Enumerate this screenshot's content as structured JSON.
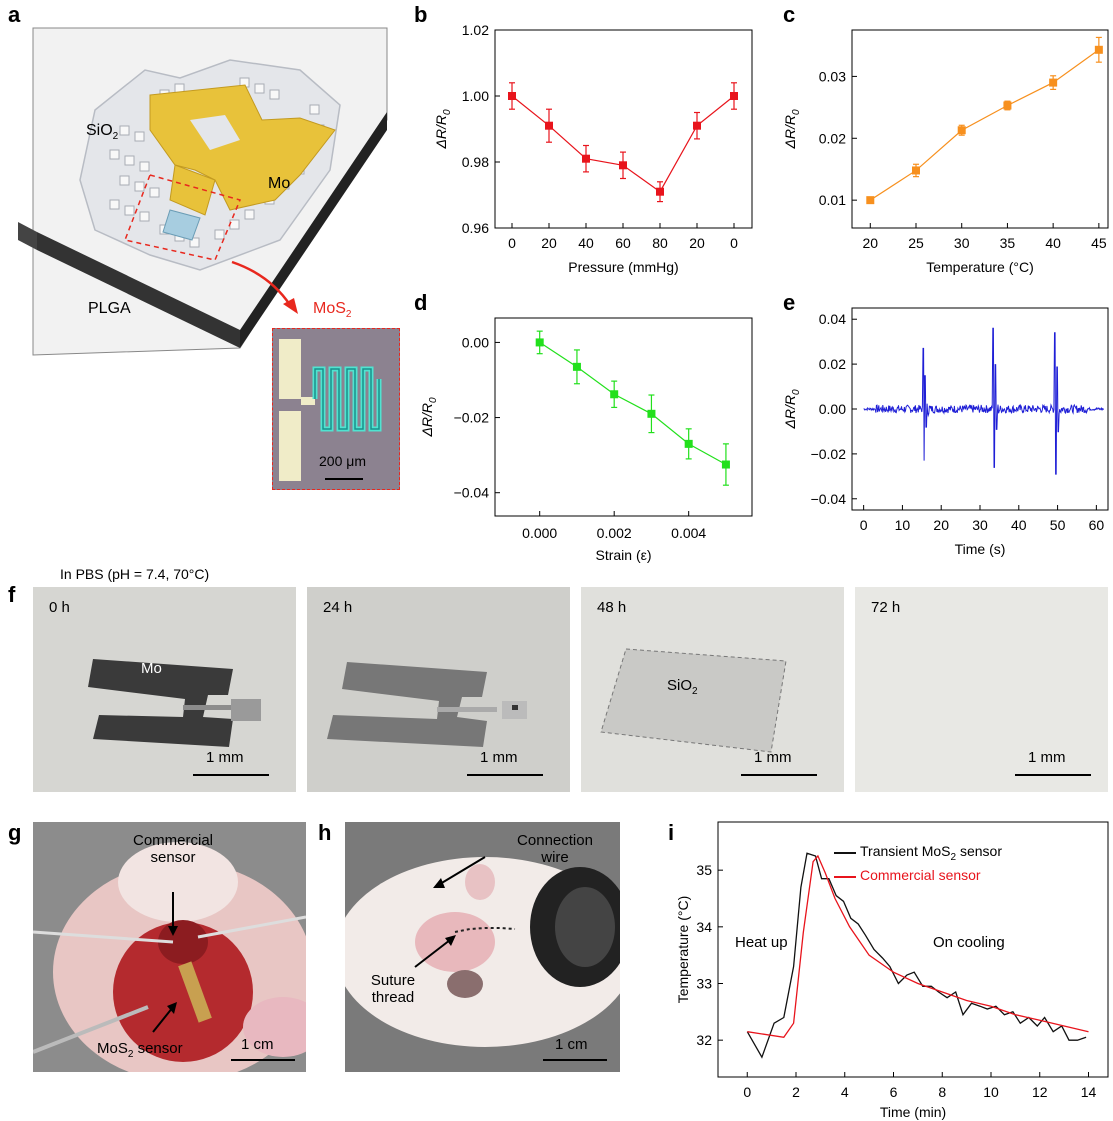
{
  "panel_labels": {
    "a": "a",
    "b": "b",
    "c": "c",
    "d": "d",
    "e": "e",
    "f": "f",
    "g": "g",
    "h": "h",
    "i": "i"
  },
  "schematic": {
    "sio2": "SiO",
    "sio2_sub": "2",
    "mo": "Mo",
    "plga": "PLGA",
    "mos2": "MoS",
    "mos2_sub": "2",
    "scale": "200 μm",
    "colors": {
      "mo": "#e8c23a",
      "arrow": "#e8281e",
      "dash": "#e8281e"
    }
  },
  "panel_f": {
    "caption": "In PBS (pH = 7.4, 70°C)",
    "frames": [
      {
        "time": "0 h",
        "label": "Mo",
        "scale": "1 mm"
      },
      {
        "time": "24 h",
        "label": "",
        "scale": "1 mm"
      },
      {
        "time": "48 h",
        "label": "SiO",
        "label_sub": "2",
        "scale": "1 mm"
      },
      {
        "time": "72 h",
        "label": "",
        "scale": "1 mm"
      }
    ]
  },
  "panel_g": {
    "commercial": "Commercial",
    "sensor": "sensor",
    "mos2_sensor": "MoS",
    "mos2_sub": "2",
    "mos2_tail": " sensor",
    "scale": "1 cm"
  },
  "panel_h": {
    "connection": "Connection",
    "wire": "wire",
    "suture": "Suture",
    "thread": "thread",
    "scale": "1 cm"
  },
  "chart_data": [
    {
      "id": "b",
      "type": "line",
      "color": "#e8141c",
      "xlabel": "Pressure (mmHg)",
      "categories": [
        "0",
        "20",
        "40",
        "60",
        "80",
        "20",
        "0"
      ],
      "values": [
        1.0,
        0.991,
        0.981,
        0.979,
        0.971,
        0.991,
        1.0
      ],
      "errors": [
        0.004,
        0.005,
        0.004,
        0.004,
        0.003,
        0.004,
        0.004
      ],
      "ylim": [
        0.96,
        1.02
      ],
      "yticks": [
        "0.96",
        "0.98",
        "1.00",
        "1.02"
      ],
      "marker": "square"
    },
    {
      "id": "c",
      "type": "line",
      "color": "#f7901e",
      "xlabel": "Temperature (°C)",
      "x": [
        20,
        25,
        30,
        35,
        40,
        45
      ],
      "values": [
        0.01,
        0.0148,
        0.0213,
        0.0253,
        0.029,
        0.0343
      ],
      "errors": [
        0.0004,
        0.001,
        0.0008,
        0.0007,
        0.0011,
        0.002
      ],
      "xlim": [
        18,
        46
      ],
      "xticks": [
        "20",
        "25",
        "30",
        "35",
        "40",
        "45"
      ],
      "ylim": [
        0.0055,
        0.0375
      ],
      "yticks": [
        "0.01",
        "0.02",
        "0.03"
      ],
      "marker": "square"
    },
    {
      "id": "d",
      "type": "line",
      "color": "#22e01c",
      "xlabel": "Strain (ε)",
      "x": [
        0,
        0.001,
        0.002,
        0.003,
        0.004,
        0.005
      ],
      "values": [
        0.0,
        -0.0065,
        -0.0138,
        -0.019,
        -0.027,
        -0.0325
      ],
      "errors": [
        0.003,
        0.0045,
        0.0035,
        0.005,
        0.004,
        0.0055
      ],
      "xlim": [
        -0.0012,
        0.0057
      ],
      "xticks": [
        "0.000",
        "0.002",
        "0.004"
      ],
      "ylim": [
        -0.0462,
        0.0065
      ],
      "yticks": [
        "0.00",
        "−0.02",
        "−0.04"
      ],
      "marker": "square"
    },
    {
      "id": "e",
      "type": "line",
      "color": "#1f1fd6",
      "xlabel": "Time (s)",
      "xlim": [
        -3,
        63
      ],
      "xticks": [
        "0",
        "10",
        "20",
        "30",
        "40",
        "50",
        "60"
      ],
      "ylim": [
        -0.045,
        0.045
      ],
      "yticks": [
        "0.04",
        "0.02",
        "0.00",
        "−0.02",
        "−0.04"
      ],
      "spikes": [
        {
          "t": 15.6,
          "up": 0.027,
          "down": -0.023
        },
        {
          "t": 33.6,
          "up": 0.036,
          "down": -0.026
        },
        {
          "t": 49.5,
          "up": 0.034,
          "down": -0.029
        }
      ]
    },
    {
      "id": "i",
      "type": "line",
      "xlabel": "Time (min)",
      "ylabel": "Temperature (°C)",
      "xlim": [
        -1.2,
        14.8
      ],
      "xticks": [
        "0",
        "2",
        "4",
        "6",
        "8",
        "10",
        "12",
        "14"
      ],
      "ylim": [
        31.35,
        35.85
      ],
      "yticks": [
        "32",
        "33",
        "34",
        "35"
      ],
      "annotations": [
        "Heat up",
        "On cooling"
      ],
      "series": [
        {
          "name": "Transient MoS2 sensor",
          "color": "#111111",
          "x": [
            0,
            0.6,
            1.1,
            1.5,
            1.9,
            2.2,
            2.45,
            2.8,
            3.05,
            3.35,
            3.65,
            3.95,
            4.25,
            4.55,
            4.85,
            5.2,
            5.55,
            5.85,
            6.2,
            6.55,
            6.85,
            7.2,
            7.55,
            7.85,
            8.2,
            8.55,
            8.85,
            9.2,
            9.55,
            9.85,
            10.2,
            10.55,
            10.9,
            11.2,
            11.55,
            11.9,
            12.2,
            12.55,
            12.9,
            13.2,
            13.55,
            13.9
          ],
          "y": [
            32.15,
            31.7,
            32.3,
            32.4,
            33.3,
            34.7,
            35.3,
            35.25,
            34.85,
            34.85,
            34.55,
            34.45,
            34.15,
            34.05,
            33.85,
            33.6,
            33.45,
            33.3,
            33.0,
            33.15,
            33.2,
            32.95,
            32.95,
            32.85,
            32.75,
            32.85,
            32.45,
            32.65,
            32.6,
            32.55,
            32.6,
            32.45,
            32.5,
            32.3,
            32.4,
            32.25,
            32.4,
            32.15,
            32.25,
            32.0,
            32.0,
            32.05
          ]
        },
        {
          "name": "Commercial sensor",
          "color": "#e8141c",
          "x": [
            0,
            1.5,
            1.9,
            2.3,
            2.7,
            2.9,
            3.2,
            3.6,
            4.2,
            5,
            6,
            7,
            8,
            9,
            10,
            11,
            12,
            13,
            14
          ],
          "y": [
            32.15,
            32.05,
            32.3,
            33.9,
            35.15,
            35.25,
            34.95,
            34.5,
            34.0,
            33.5,
            33.2,
            33.0,
            32.85,
            32.7,
            32.6,
            32.45,
            32.35,
            32.25,
            32.15
          ]
        }
      ],
      "legend": [
        "Transient MoS",
        "2",
        " sensor",
        "Commercial sensor"
      ]
    }
  ],
  "axis_labels": {
    "dr": "ΔR/R",
    "dr_sub": "0"
  }
}
